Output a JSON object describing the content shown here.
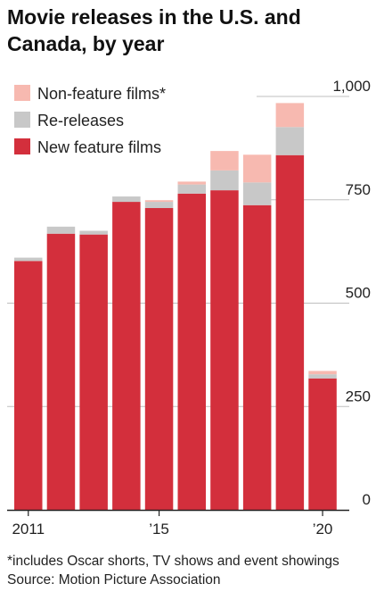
{
  "title": "Movie releases in the U.S. and Canada, by year",
  "footnote": "*includes Oscar shorts, TV shows and event showings",
  "source": "Source: Motion Picture Association",
  "colors": {
    "new_feature": "#d32f3c",
    "re_release": "#c8c8c8",
    "non_feature": "#f7b9b0",
    "grid": "#bfbfbf",
    "axis": "#222222"
  },
  "chart_data": {
    "type": "bar",
    "stacked": true,
    "categories": [
      "2011",
      "2012",
      "2013",
      "2014",
      "2015",
      "2016",
      "2017",
      "2018",
      "2019",
      "2020"
    ],
    "x_tick_labels": [
      {
        "category": "2011",
        "label": "2011"
      },
      {
        "category": "2015",
        "label": "’15"
      },
      {
        "category": "2020",
        "label": "’20"
      }
    ],
    "series": [
      {
        "name": "New feature films",
        "color": "#d32f3c",
        "values": [
          602,
          668,
          666,
          745,
          730,
          765,
          773,
          737,
          858,
          318
        ]
      },
      {
        "name": "Re-releases",
        "color": "#c8c8c8",
        "values": [
          8,
          17,
          9,
          13,
          15,
          22,
          48,
          55,
          68,
          10
        ]
      },
      {
        "name": "Non-feature films*",
        "color": "#f7b9b0",
        "values": [
          0,
          0,
          0,
          0,
          4,
          7,
          47,
          67,
          58,
          8
        ]
      }
    ],
    "ylim": [
      0,
      1000
    ],
    "yticks": [
      0,
      250,
      500,
      750,
      1000
    ],
    "ytick_labels": [
      "0",
      "250",
      "500",
      "750",
      "1,000"
    ],
    "grid": true,
    "legend_position": "top-left",
    "xlabel": "",
    "ylabel": ""
  }
}
